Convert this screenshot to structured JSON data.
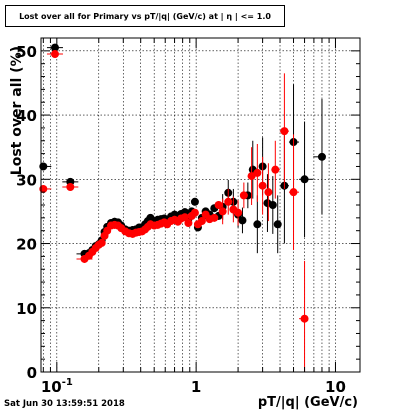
{
  "chart_data": {
    "type": "scatter",
    "title": "Lost over all for Primary vs pT/|q| (GeV/c) at | η | <= 1.0",
    "xlabel": "pT/|q| (GeV/c)",
    "ylabel": "Lost over all (%)",
    "x_scale": "log",
    "xlim": [
      0.077,
      15
    ],
    "ylim": [
      0,
      52
    ],
    "y_ticks": [
      0,
      10,
      20,
      30,
      40,
      50
    ],
    "x_tick_labels": [
      {
        "value": 0.1,
        "label": "10",
        "exp": "-1"
      },
      {
        "value": 1,
        "label": "1",
        "exp": ""
      },
      {
        "value": 10,
        "label": "10",
        "exp": ""
      }
    ],
    "grid": true,
    "series": [
      {
        "color": "#000000",
        "points": [
          {
            "x": 0.08,
            "y": 32.0
          },
          {
            "x": 0.097,
            "y": 50.5
          },
          {
            "x": 0.125,
            "y": 29.6
          },
          {
            "x": 0.158,
            "y": 18.4
          },
          {
            "x": 0.17,
            "y": 18.5
          },
          {
            "x": 0.18,
            "y": 19.0
          },
          {
            "x": 0.19,
            "y": 19.6
          },
          {
            "x": 0.2,
            "y": 19.9
          },
          {
            "x": 0.21,
            "y": 20.5
          },
          {
            "x": 0.22,
            "y": 21.8
          },
          {
            "x": 0.23,
            "y": 22.6
          },
          {
            "x": 0.245,
            "y": 23.2
          },
          {
            "x": 0.26,
            "y": 23.4
          },
          {
            "x": 0.275,
            "y": 23.3
          },
          {
            "x": 0.29,
            "y": 22.8
          },
          {
            "x": 0.31,
            "y": 22.2
          },
          {
            "x": 0.33,
            "y": 22.0
          },
          {
            "x": 0.35,
            "y": 22.1
          },
          {
            "x": 0.37,
            "y": 22.2
          },
          {
            "x": 0.39,
            "y": 22.5
          },
          {
            "x": 0.41,
            "y": 22.3
          },
          {
            "x": 0.43,
            "y": 23.0
          },
          {
            "x": 0.45,
            "y": 23.5
          },
          {
            "x": 0.47,
            "y": 24.0
          },
          {
            "x": 0.5,
            "y": 23.5
          },
          {
            "x": 0.53,
            "y": 23.7
          },
          {
            "x": 0.56,
            "y": 23.8
          },
          {
            "x": 0.59,
            "y": 23.9
          },
          {
            "x": 0.62,
            "y": 23.5
          },
          {
            "x": 0.66,
            "y": 24.2
          },
          {
            "x": 0.7,
            "y": 24.5
          },
          {
            "x": 0.74,
            "y": 24.0
          },
          {
            "x": 0.78,
            "y": 24.6
          },
          {
            "x": 0.83,
            "y": 24.9
          },
          {
            "x": 0.88,
            "y": 23.8
          },
          {
            "x": 0.93,
            "y": 25.0
          },
          {
            "x": 0.98,
            "y": 26.5
          },
          {
            "x": 1.03,
            "y": 22.5
          },
          {
            "x": 1.1,
            "y": 24.0
          },
          {
            "x": 1.17,
            "y": 25.0
          },
          {
            "x": 1.25,
            "y": 24.5
          },
          {
            "x": 1.35,
            "y": 25.5
          },
          {
            "x": 1.45,
            "y": 24.3
          },
          {
            "x": 1.55,
            "y": 25.7
          },
          {
            "x": 1.7,
            "y": 27.9
          },
          {
            "x": 1.85,
            "y": 26.5
          },
          {
            "x": 2.0,
            "y": 24.5
          },
          {
            "x": 2.15,
            "y": 23.6
          },
          {
            "x": 2.35,
            "y": 27.5
          },
          {
            "x": 2.55,
            "y": 31.5
          },
          {
            "x": 2.75,
            "y": 23.0
          },
          {
            "x": 3.0,
            "y": 32.0
          },
          {
            "x": 3.25,
            "y": 26.3
          },
          {
            "x": 3.55,
            "y": 26.0
          },
          {
            "x": 3.85,
            "y": 23.0
          },
          {
            "x": 4.3,
            "y": 29.0
          },
          {
            "x": 5.0,
            "y": 35.8
          },
          {
            "x": 6.0,
            "y": 30.0
          },
          {
            "x": 8.0,
            "y": 33.5
          }
        ]
      },
      {
        "color": "#ff0000",
        "points": [
          {
            "x": 0.08,
            "y": 28.5
          },
          {
            "x": 0.097,
            "y": 49.5
          },
          {
            "x": 0.125,
            "y": 28.8
          },
          {
            "x": 0.158,
            "y": 17.6
          },
          {
            "x": 0.17,
            "y": 18.1
          },
          {
            "x": 0.18,
            "y": 18.7
          },
          {
            "x": 0.19,
            "y": 19.3
          },
          {
            "x": 0.2,
            "y": 19.8
          },
          {
            "x": 0.21,
            "y": 20.1
          },
          {
            "x": 0.22,
            "y": 21.2
          },
          {
            "x": 0.23,
            "y": 22.0
          },
          {
            "x": 0.245,
            "y": 22.8
          },
          {
            "x": 0.26,
            "y": 22.9
          },
          {
            "x": 0.275,
            "y": 22.8
          },
          {
            "x": 0.29,
            "y": 22.4
          },
          {
            "x": 0.31,
            "y": 21.9
          },
          {
            "x": 0.33,
            "y": 21.6
          },
          {
            "x": 0.35,
            "y": 21.5
          },
          {
            "x": 0.37,
            "y": 21.7
          },
          {
            "x": 0.39,
            "y": 21.8
          },
          {
            "x": 0.41,
            "y": 21.9
          },
          {
            "x": 0.43,
            "y": 22.2
          },
          {
            "x": 0.45,
            "y": 22.6
          },
          {
            "x": 0.47,
            "y": 23.0
          },
          {
            "x": 0.5,
            "y": 22.8
          },
          {
            "x": 0.53,
            "y": 22.9
          },
          {
            "x": 0.56,
            "y": 23.1
          },
          {
            "x": 0.59,
            "y": 23.3
          },
          {
            "x": 0.62,
            "y": 23.0
          },
          {
            "x": 0.66,
            "y": 23.5
          },
          {
            "x": 0.7,
            "y": 23.7
          },
          {
            "x": 0.74,
            "y": 23.4
          },
          {
            "x": 0.78,
            "y": 23.9
          },
          {
            "x": 0.83,
            "y": 24.1
          },
          {
            "x": 0.88,
            "y": 23.2
          },
          {
            "x": 0.93,
            "y": 24.3
          },
          {
            "x": 0.98,
            "y": 24.8
          },
          {
            "x": 1.03,
            "y": 23.0
          },
          {
            "x": 1.1,
            "y": 23.5
          },
          {
            "x": 1.17,
            "y": 24.5
          },
          {
            "x": 1.25,
            "y": 23.8
          },
          {
            "x": 1.35,
            "y": 24.0
          },
          {
            "x": 1.45,
            "y": 26.0
          },
          {
            "x": 1.55,
            "y": 25.0
          },
          {
            "x": 1.7,
            "y": 26.5
          },
          {
            "x": 1.85,
            "y": 25.3
          },
          {
            "x": 2.0,
            "y": 24.8
          },
          {
            "x": 2.2,
            "y": 27.5
          },
          {
            "x": 2.5,
            "y": 30.5
          },
          {
            "x": 2.75,
            "y": 31.0
          },
          {
            "x": 3.0,
            "y": 29.0
          },
          {
            "x": 3.3,
            "y": 28.0
          },
          {
            "x": 3.7,
            "y": 31.5
          },
          {
            "x": 4.3,
            "y": 37.5
          },
          {
            "x": 5.0,
            "y": 28.0
          },
          {
            "x": 6.0,
            "y": 8.3
          }
        ]
      }
    ]
  },
  "timestamp": "Sat Jun 30 13:59:51 2018"
}
